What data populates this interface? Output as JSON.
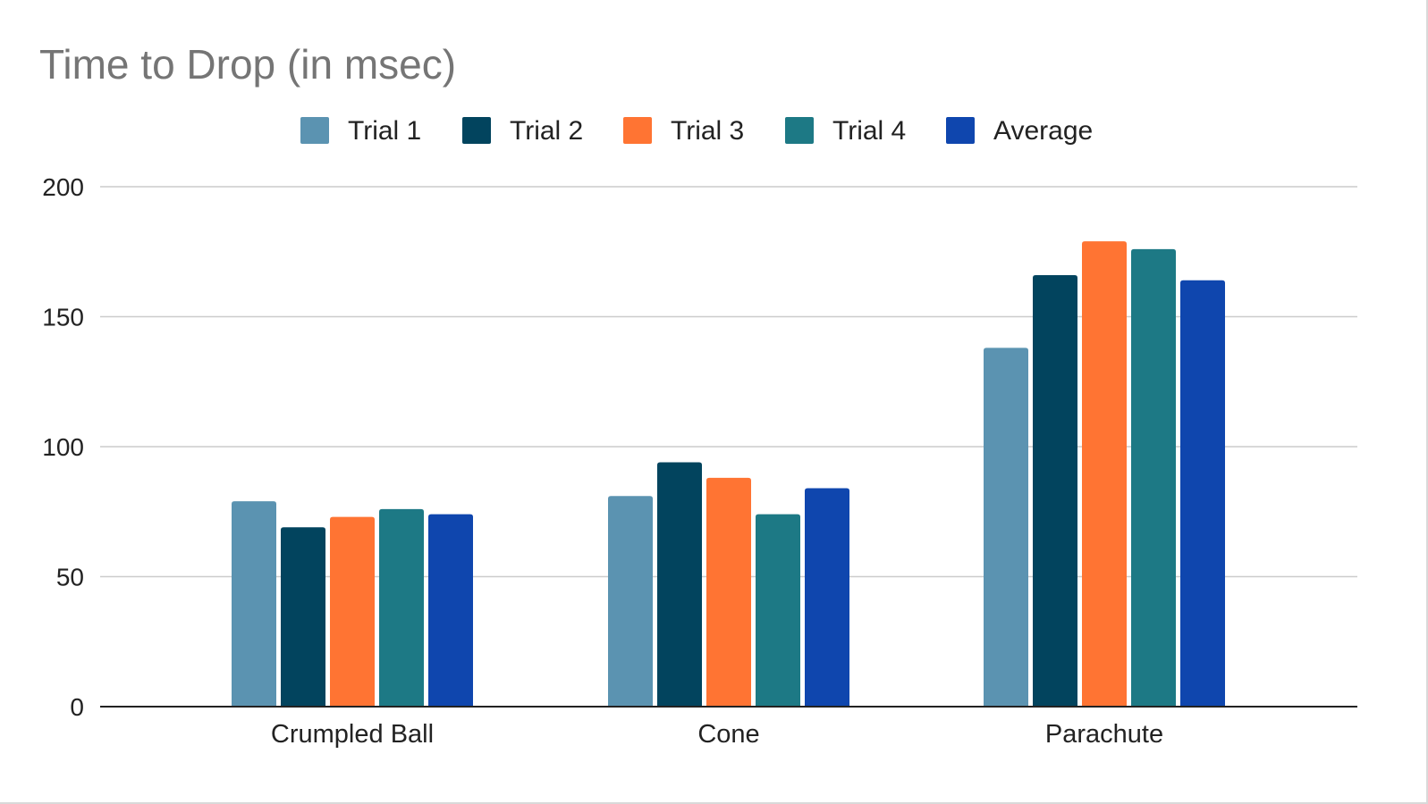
{
  "chart_data": {
    "type": "bar",
    "title": "Time to Drop (in msec)",
    "xlabel": "",
    "ylabel": "",
    "categories": [
      "Crumpled Ball",
      "Cone",
      "Parachute"
    ],
    "series": [
      {
        "name": "Trial 1",
        "color": "#5b93b1",
        "values": [
          79,
          81,
          138
        ]
      },
      {
        "name": "Trial 2",
        "color": "#02445e",
        "values": [
          69,
          94,
          166
        ]
      },
      {
        "name": "Trial 3",
        "color": "#ff7433",
        "values": [
          73,
          88,
          179
        ]
      },
      {
        "name": "Trial 4",
        "color": "#1d7985",
        "values": [
          76,
          74,
          176
        ]
      },
      {
        "name": "Average",
        "color": "#0f46ae",
        "values": [
          74,
          84,
          164
        ]
      }
    ],
    "ylim": [
      0,
      200
    ],
    "yticks": [
      0,
      50,
      100,
      150,
      200
    ],
    "grid": true,
    "legend": "top-center"
  }
}
